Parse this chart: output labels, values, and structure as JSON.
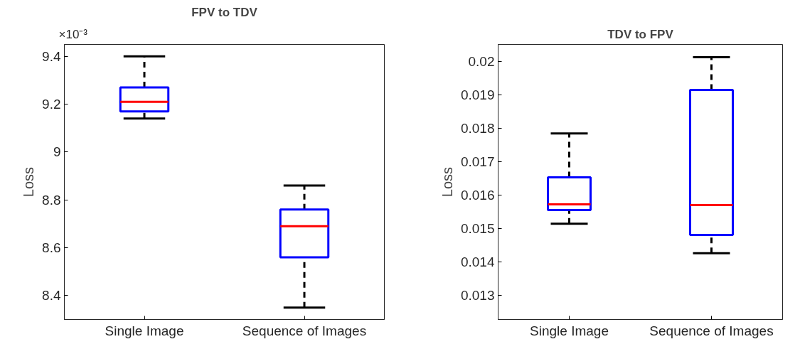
{
  "chart_data": [
    {
      "type": "box",
      "title": "FPV to TDV",
      "ylabel": "Loss",
      "annotations": [
        "×10⁻³"
      ],
      "categories": [
        "Single Image",
        "Sequence of Images"
      ],
      "ylim": [
        8.3,
        9.45
      ],
      "yticks": [
        8.4,
        8.6,
        8.8,
        9,
        9.2,
        9.4
      ],
      "grid": false,
      "boxes": [
        {
          "low": 9.14,
          "q1": 9.17,
          "median": 9.21,
          "q3": 9.27,
          "high": 9.4
        },
        {
          "low": 8.35,
          "q1": 8.56,
          "median": 8.69,
          "q3": 8.76,
          "high": 8.86
        }
      ],
      "color": "#0000ff",
      "line_style": "dashed"
    },
    {
      "type": "box",
      "title": "TDV to FPV",
      "ylabel": "Loss",
      "categories": [
        "Single Image",
        "Sequence of Images"
      ],
      "ylim": [
        0.01228,
        0.0205
      ],
      "yticks": [
        0.013,
        0.014,
        0.015,
        0.016,
        0.017,
        0.018,
        0.019,
        0.02
      ],
      "grid": false,
      "boxes": [
        {
          "low": 0.01514,
          "q1": 0.01555,
          "median": 0.01572,
          "q3": 0.01653,
          "high": 0.01784
        },
        {
          "low": 0.01426,
          "q1": 0.01481,
          "median": 0.0157,
          "q3": 0.01914,
          "high": 0.02012
        }
      ],
      "color": "#0000ff",
      "line_style": "dashed"
    }
  ]
}
